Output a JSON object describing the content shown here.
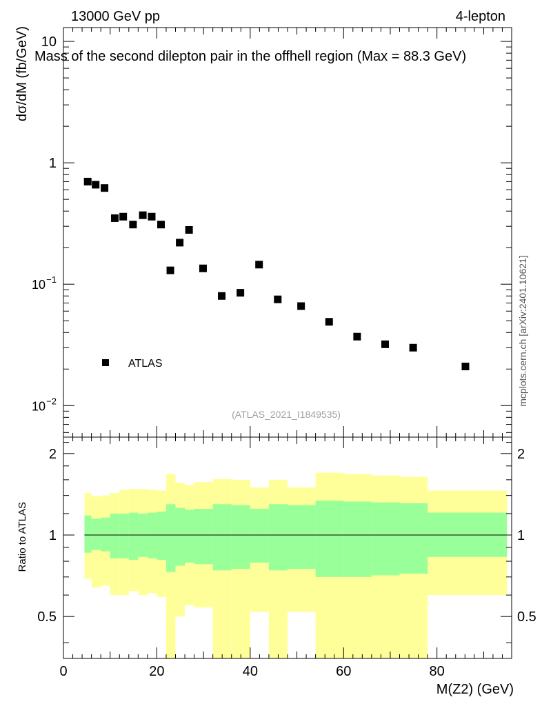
{
  "header": {
    "left": "13000 GeV pp",
    "right": "4-lepton"
  },
  "side_label": "mcplots.cern.ch [arXiv:2401.10621]",
  "chart_data": [
    {
      "type": "scatter",
      "title": "Mass of the second dilepton pair in the offhell region (Max = 88.3 GeV)",
      "xlabel": "M(Z2) (GeV)",
      "ylabel": "dσ/dM (fb/GeV)",
      "xlim": [
        0,
        96
      ],
      "ylim": [
        0.0055,
        13
      ],
      "yscale": "log",
      "yticks": [
        {
          "value": 10,
          "label": "10"
        },
        {
          "value": 1,
          "label": "1"
        },
        {
          "value": 0.1,
          "label": "10",
          "exp": "−1"
        },
        {
          "value": 0.01,
          "label": "10",
          "exp": "−2"
        }
      ],
      "reference": "(ATLAS_2021_I1849535)",
      "legend": {
        "label": "ATLAS",
        "position": "bottom-left"
      },
      "series": [
        {
          "name": "ATLAS",
          "x": [
            5.2,
            6.9,
            8.8,
            11.0,
            12.8,
            14.9,
            17.0,
            18.9,
            20.9,
            22.9,
            24.9,
            26.9,
            29.9,
            33.9,
            37.9,
            41.9,
            45.9,
            50.9,
            56.9,
            62.9,
            68.9,
            74.9,
            86.1
          ],
          "y": [
            0.7,
            0.66,
            0.62,
            0.35,
            0.36,
            0.31,
            0.37,
            0.36,
            0.31,
            0.13,
            0.22,
            0.28,
            0.135,
            0.08,
            0.085,
            0.145,
            0.075,
            0.066,
            0.049,
            0.037,
            0.032,
            0.03,
            0.021
          ]
        }
      ]
    },
    {
      "type": "area",
      "xlabel": "M(Z2) (GeV)",
      "ylabel": "Ratio to ATLAS",
      "xlim": [
        0,
        96
      ],
      "ylim": [
        0.35,
        2.3
      ],
      "yscale": "log",
      "xticks": [
        0,
        20,
        40,
        60,
        80
      ],
      "yticks": [
        {
          "value": 0.5,
          "label": "0.5"
        },
        {
          "value": 1,
          "label": "1"
        },
        {
          "value": 2,
          "label": "2"
        }
      ],
      "reference_line": 1,
      "bands": [
        {
          "name": "stat",
          "color": "#99ff99",
          "bins": [
            [
              4.5,
              6,
              0.86,
              1.18
            ],
            [
              6,
              8,
              0.88,
              1.15
            ],
            [
              8,
              10,
              0.87,
              1.16
            ],
            [
              10,
              12,
              0.82,
              1.2
            ],
            [
              12,
              14,
              0.82,
              1.2
            ],
            [
              14,
              16,
              0.81,
              1.21
            ],
            [
              16,
              18,
              0.83,
              1.2
            ],
            [
              18,
              20,
              0.82,
              1.21
            ],
            [
              20,
              22,
              0.81,
              1.22
            ],
            [
              22,
              24,
              0.73,
              1.3
            ],
            [
              24,
              26,
              0.77,
              1.26
            ],
            [
              26,
              28,
              0.79,
              1.24
            ],
            [
              28,
              32,
              0.78,
              1.25
            ],
            [
              32,
              36,
              0.74,
              1.3
            ],
            [
              36,
              40,
              0.75,
              1.29
            ],
            [
              40,
              44,
              0.79,
              1.25
            ],
            [
              44,
              48,
              0.74,
              1.3
            ],
            [
              48,
              54,
              0.75,
              1.29
            ],
            [
              54,
              60,
              0.7,
              1.34
            ],
            [
              60,
              66,
              0.7,
              1.33
            ],
            [
              66,
              72,
              0.71,
              1.32
            ],
            [
              72,
              78,
              0.72,
              1.31
            ],
            [
              78,
              95,
              0.83,
              1.21
            ]
          ]
        },
        {
          "name": "total",
          "color": "#ffff99",
          "bins": [
            [
              4.5,
              6,
              0.69,
              1.43
            ],
            [
              6,
              8,
              0.64,
              1.39
            ],
            [
              8,
              10,
              0.65,
              1.4
            ],
            [
              10,
              12,
              0.6,
              1.43
            ],
            [
              12,
              14,
              0.6,
              1.47
            ],
            [
              14,
              16,
              0.62,
              1.48
            ],
            [
              16,
              18,
              0.6,
              1.48
            ],
            [
              18,
              20,
              0.61,
              1.47
            ],
            [
              20,
              22,
              0.59,
              1.46
            ],
            [
              22,
              24,
              0.25,
              1.68
            ],
            [
              24,
              26,
              0.5,
              1.56
            ],
            [
              26,
              28,
              0.55,
              1.53
            ],
            [
              28,
              32,
              0.54,
              1.57
            ],
            [
              32,
              36,
              0.25,
              1.61
            ],
            [
              36,
              40,
              0.25,
              1.6
            ],
            [
              40,
              44,
              0.52,
              1.5
            ],
            [
              44,
              48,
              0.25,
              1.6
            ],
            [
              48,
              54,
              0.52,
              1.5
            ],
            [
              54,
              60,
              0.25,
              1.7
            ],
            [
              60,
              66,
              0.25,
              1.68
            ],
            [
              66,
              72,
              0.25,
              1.66
            ],
            [
              72,
              78,
              0.25,
              1.64
            ],
            [
              78,
              95,
              0.6,
              1.46
            ]
          ]
        }
      ]
    }
  ]
}
